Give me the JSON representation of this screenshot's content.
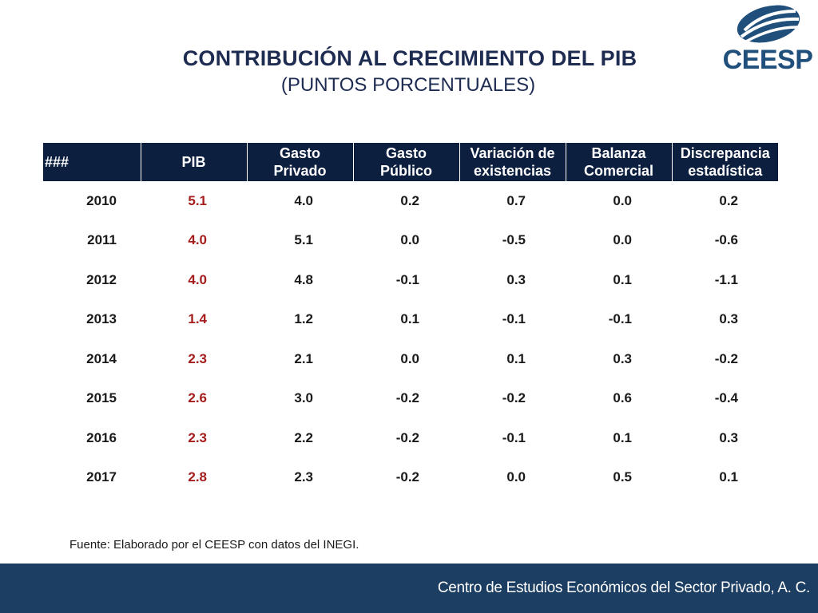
{
  "title": {
    "main": "CONTRIBUCIÓN AL CRECIMIENTO DEL PIB",
    "sub": "(PUNTOS PORCENTUALES)"
  },
  "logo": {
    "text": "CEESP",
    "icon": "ceesp-swirl-logo",
    "color": "#1f4f7a"
  },
  "table": {
    "headers": [
      {
        "l1": "###",
        "l2": ""
      },
      {
        "l1": "PIB",
        "l2": ""
      },
      {
        "l1": "Gasto",
        "l2": "Privado"
      },
      {
        "l1": "Gasto",
        "l2": "Público"
      },
      {
        "l1": "Variación de",
        "l2": "existencias"
      },
      {
        "l1": "Balanza",
        "l2": "Comercial"
      },
      {
        "l1": "Discrepancia",
        "l2": "estadística"
      }
    ],
    "rows": [
      [
        "2010",
        "5.1",
        "4.0",
        "0.2",
        "0.7",
        "0.0",
        "0.2"
      ],
      [
        "2011",
        "4.0",
        "5.1",
        "0.0",
        "-0.5",
        "0.0",
        "-0.6"
      ],
      [
        "2012",
        "4.0",
        "4.8",
        "-0.1",
        "0.3",
        "0.1",
        "-1.1"
      ],
      [
        "2013",
        "1.4",
        "1.2",
        "0.1",
        "-0.1",
        "-0.1",
        "0.3"
      ],
      [
        "2014",
        "2.3",
        "2.1",
        "0.0",
        "0.1",
        "0.3",
        "-0.2"
      ],
      [
        "2015",
        "2.6",
        "3.0",
        "-0.2",
        "-0.2",
        "0.6",
        "-0.4"
      ],
      [
        "2016",
        "2.3",
        "2.2",
        "-0.2",
        "-0.1",
        "0.1",
        "0.3"
      ],
      [
        "2017",
        "2.8",
        "2.3",
        "-0.2",
        "0.0",
        "0.5",
        "0.1"
      ]
    ],
    "header_bg": "#0d1f3f",
    "pib_color": "#a51c1c"
  },
  "source": "Fuente: Elaborado por el CEESP con datos del INEGI.",
  "footer": {
    "text": "Centro de Estudios Económicos del Sector Privado, A. C.",
    "bg": "#1c3e62"
  }
}
